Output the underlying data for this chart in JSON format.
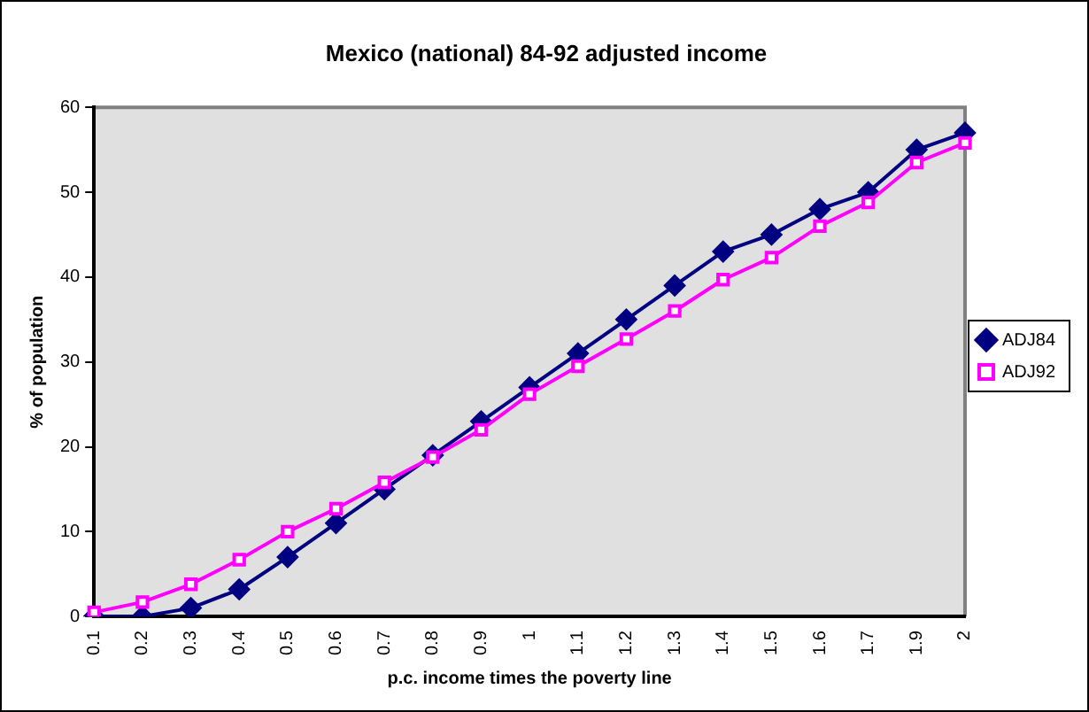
{
  "chart_data": {
    "type": "line",
    "title": "Mexico (national) 84-92 adjusted income",
    "xlabel": "p.c. income times the poverty line",
    "ylabel": "% of population",
    "categories": [
      "0.1",
      "0.2",
      "0.3",
      "0.4",
      "0.5",
      "0.6",
      "0.7",
      "0.8",
      "0.9",
      "1",
      "1.1",
      "1.2",
      "1.3",
      "1.4",
      "1.5",
      "1.6",
      "1.7",
      "1.9",
      "2"
    ],
    "series": [
      {
        "name": "ADJ84",
        "color": "#000080",
        "marker": "diamond",
        "values": [
          0,
          0,
          1,
          3.2,
          7,
          11,
          15,
          19,
          23,
          27,
          31,
          35,
          39,
          43,
          45,
          48,
          50,
          55,
          57
        ]
      },
      {
        "name": "ADJ92",
        "color": "#ff00ff",
        "marker": "square",
        "values": [
          0.5,
          1.7,
          3.8,
          6.7,
          10,
          12.7,
          15.8,
          18.8,
          22,
          26.2,
          29.5,
          32.7,
          36,
          39.7,
          42.3,
          46,
          48.8,
          53.5,
          55.8
        ]
      }
    ],
    "ylim": [
      0,
      60
    ],
    "yticks": [
      0,
      10,
      20,
      30,
      40,
      50,
      60
    ],
    "grid": false,
    "legend": "right",
    "line_style": "solid"
  }
}
